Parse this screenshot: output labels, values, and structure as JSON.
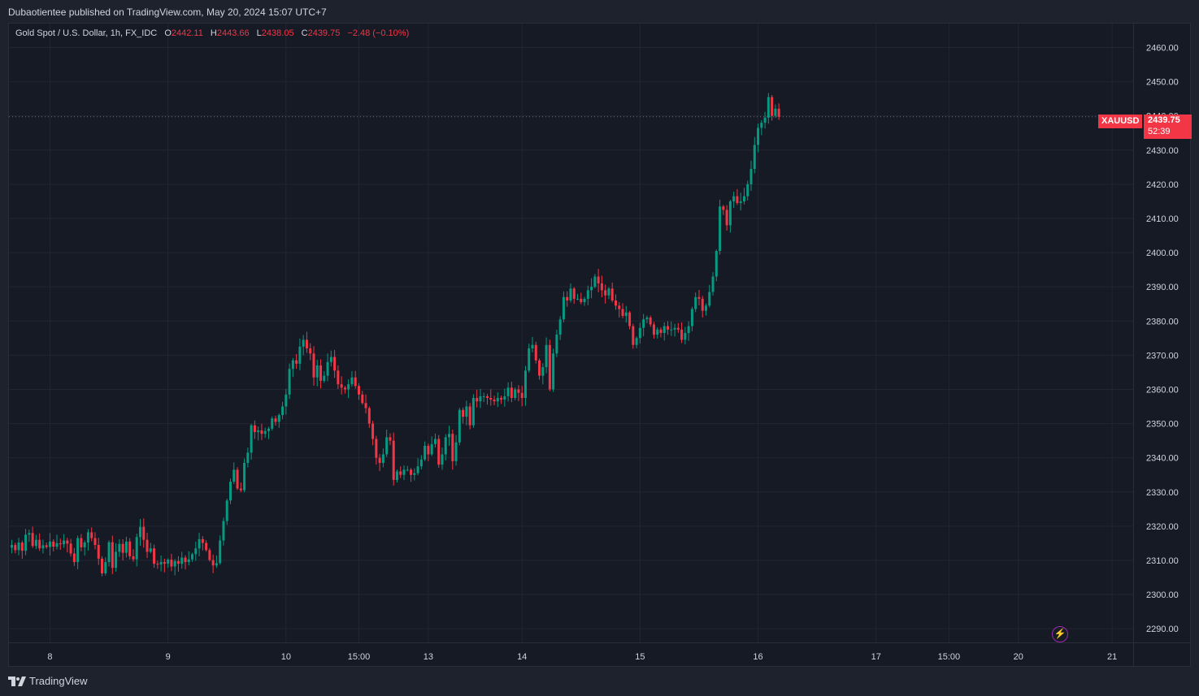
{
  "publisher_line": "Dubaotientee published on TradingView.com, May 20, 2024 15:07 UTC+7",
  "legend": {
    "symbol": "Gold Spot / U.S. Dollar, 1h, FX_IDC",
    "o_label": "O",
    "o_value": "2442.11",
    "h_label": "H",
    "h_value": "2443.66",
    "l_label": "L",
    "l_value": "2438.05",
    "c_label": "C",
    "c_value": "2439.75",
    "change": "−2.48 (−0.10%)"
  },
  "price_tag": {
    "ticker": "XAUUSD",
    "price": "2439.75",
    "countdown": "52:39"
  },
  "footer": {
    "brand": "TradingView"
  },
  "colors": {
    "up": "#089981",
    "down": "#f23645",
    "grid": "#232632",
    "text": "#b2b5be",
    "background": "#161a25"
  },
  "icons": {
    "logo": "tradingview-logo-icon",
    "alert": "lightning-icon"
  },
  "chart_data": {
    "type": "candlestick",
    "title": "Gold Spot / U.S. Dollar, 1h, FX_IDC",
    "ylim": [
      2286,
      2467
    ],
    "y_ticks": [
      "2290.00",
      "2300.00",
      "2310.00",
      "2320.00",
      "2330.00",
      "2340.00",
      "2350.00",
      "2360.00",
      "2370.00",
      "2380.00",
      "2390.00",
      "2400.00",
      "2410.00",
      "2420.00",
      "2430.00",
      "2440.00",
      "2450.00",
      "2460.00"
    ],
    "x_ticks": [
      {
        "label": "8",
        "bar": 11
      },
      {
        "label": "9",
        "bar": 45
      },
      {
        "label": "10",
        "bar": 79
      },
      {
        "label": "15:00",
        "bar": 100
      },
      {
        "label": "13",
        "bar": 120
      },
      {
        "label": "14",
        "bar": 147
      },
      {
        "label": "15",
        "bar": 181
      },
      {
        "label": "16",
        "bar": 215
      },
      {
        "label": "17",
        "bar": 249
      },
      {
        "label": "15:00",
        "bar": 270
      },
      {
        "label": "20",
        "bar": 290
      },
      {
        "label": "21",
        "bar": 317
      }
    ],
    "last_price": 2439.75,
    "grid": true,
    "closes": [
      2314.5,
      2313.0,
      2315.2,
      2312.8,
      2317.5,
      2318.0,
      2314.2,
      2316.0,
      2313.5,
      2314.4,
      2313.9,
      2315.5,
      2314.0,
      2315.0,
      2314.7,
      2315.8,
      2314.9,
      2312.0,
      2309.5,
      2316.5,
      2313.8,
      2315.2,
      2318.2,
      2316.5,
      2314.5,
      2310.5,
      2306.2,
      2309.5,
      2315.3,
      2307.8,
      2312.5,
      2314.8,
      2312.2,
      2315.5,
      2311.2,
      2310.3,
      2316.8,
      2319.8,
      2316.0,
      2312.5,
      2313.5,
      2309.0,
      2308.8,
      2309.5,
      2309.0,
      2310.2,
      2308.2,
      2309.8,
      2309.0,
      2310.8,
      2309.5,
      2310.3,
      2311.8,
      2313.5,
      2316.2,
      2315.1,
      2313.0,
      2310.1,
      2308.5,
      2309.2,
      2315.8,
      2321.5,
      2327.5,
      2333.0,
      2336.5,
      2331.0,
      2330.5,
      2338.5,
      2341.5,
      2349.5,
      2347.5,
      2348.0,
      2347.0,
      2347.8,
      2348.5,
      2351.5,
      2350.5,
      2352.5,
      2355.0,
      2358.5,
      2366.0,
      2368.5,
      2367.5,
      2372.5,
      2374.5,
      2372.0,
      2370.5,
      2363.5,
      2367.0,
      2362.5,
      2364.0,
      2368.0,
      2369.5,
      2365.5,
      2361.5,
      2360.5,
      2360.0,
      2361.5,
      2363.5,
      2361.0,
      2358.5,
      2356.0,
      2354.5,
      2350.0,
      2345.5,
      2340.0,
      2338.5,
      2341.0,
      2346.0,
      2345.0,
      2333.5,
      2336.0,
      2335.0,
      2336.5,
      2336.5,
      2335.0,
      2335.5,
      2337.5,
      2339.5,
      2343.5,
      2341.0,
      2344.0,
      2345.5,
      2338.0,
      2341.0,
      2346.0,
      2347.0,
      2339.0,
      2344.5,
      2354.0,
      2352.0,
      2355.0,
      2349.5,
      2357.5,
      2356.5,
      2358.0,
      2358.0,
      2357.5,
      2357.0,
      2356.5,
      2357.5,
      2357.0,
      2358.0,
      2360.5,
      2357.5,
      2360.0,
      2359.0,
      2357.5,
      2365.5,
      2372.0,
      2373.0,
      2368.5,
      2364.0,
      2366.5,
      2373.0,
      2360.0,
      2370.5,
      2376.0,
      2380.5,
      2387.0,
      2386.0,
      2389.5,
      2386.5,
      2386.5,
      2385.5,
      2386.5,
      2389.0,
      2390.0,
      2393.0,
      2391.0,
      2389.0,
      2387.5,
      2389.5,
      2386.0,
      2384.5,
      2383.5,
      2381.5,
      2382.5,
      2378.5,
      2373.0,
      2375.0,
      2378.0,
      2380.5,
      2381.0,
      2379.0,
      2376.0,
      2377.5,
      2376.5,
      2378.5,
      2377.5,
      2377.5,
      2378.0,
      2377.5,
      2374.5,
      2376.5,
      2378.5,
      2383.5,
      2387.0,
      2386.5,
      2383.0,
      2384.5,
      2388.5,
      2393.0,
      2400.5,
      2413.5,
      2412.5,
      2408.0,
      2415.0,
      2416.5,
      2414.5,
      2415.0,
      2416.5,
      2420.0,
      2424.5,
      2431.5,
      2436.5,
      2438.0,
      2439.5,
      2445.5,
      2440.0,
      2442.1,
      2439.75
    ]
  }
}
